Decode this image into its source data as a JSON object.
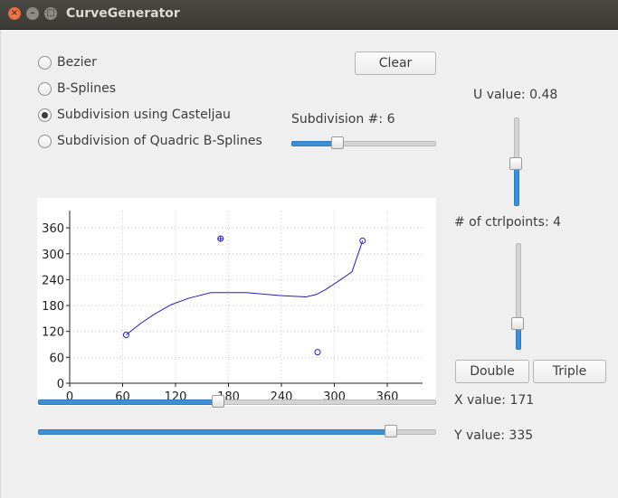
{
  "window": {
    "title": "CurveGenerator"
  },
  "modes": [
    {
      "label": "Bezier",
      "checked": false
    },
    {
      "label": "B-Splines",
      "checked": false
    },
    {
      "label": "Subdivision using Casteljau",
      "checked": true
    },
    {
      "label": "Subdivision of Quadric B-Splines",
      "checked": false
    }
  ],
  "buttons": {
    "clear": "Clear",
    "double": "Double",
    "triple": "Triple"
  },
  "subdivision": {
    "label": "Subdivision #: 6",
    "value": 6,
    "min": 0,
    "max": 20
  },
  "u_value": {
    "label": "U value: 0.48",
    "value": 0.48
  },
  "ctrlpoints": {
    "label": "# of ctrlpoints: 4",
    "value": 4,
    "fraction": 0.21
  },
  "x_value": {
    "label": "X value: 171",
    "value": 171,
    "fraction": 0.45
  },
  "y_value": {
    "label": "Y value: 335",
    "value": 335,
    "fraction": 0.9
  },
  "chart_data": {
    "type": "line",
    "xlim": [
      0,
      400
    ],
    "ylim": [
      0,
      400
    ],
    "x_ticks": [
      0,
      60,
      120,
      180,
      240,
      300,
      360
    ],
    "y_ticks": [
      0,
      60,
      120,
      180,
      240,
      300,
      360
    ],
    "grid": true,
    "curve": {
      "x": [
        64,
        80,
        96,
        115,
        135,
        160,
        200,
        240,
        268,
        280,
        290,
        305,
        320,
        332
      ],
      "y": [
        112,
        138,
        160,
        182,
        197,
        210,
        210,
        203,
        200,
        206,
        217,
        237,
        258,
        330
      ]
    },
    "control_points": [
      {
        "x": 64,
        "y": 112
      },
      {
        "x": 171,
        "y": 335
      },
      {
        "x": 281,
        "y": 72
      },
      {
        "x": 332,
        "y": 330
      }
    ],
    "selected_point_index": 1,
    "color": "#1f1fcc"
  }
}
